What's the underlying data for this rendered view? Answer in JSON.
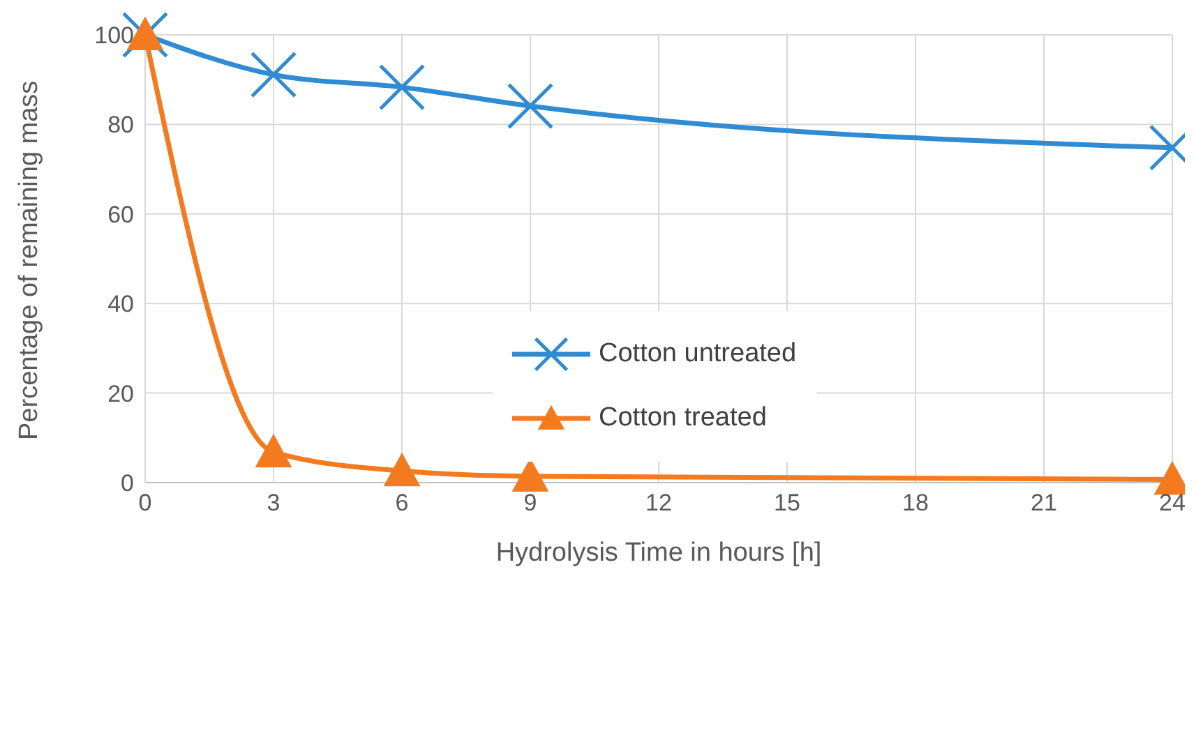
{
  "chart_data": {
    "type": "line",
    "xlabel": "Hydrolysis Time in hours [h]",
    "ylabel": "Percentage of remaining mass",
    "x": [
      0,
      3,
      6,
      9,
      24
    ],
    "series": [
      {
        "name": "Cotton untreated",
        "color": "#2e8bd4",
        "marker": "cross",
        "values": [
          100,
          91.1,
          88.3,
          84.1,
          74.8
        ]
      },
      {
        "name": "Cotton treated",
        "color": "#f47a20",
        "marker": "triangle",
        "values": [
          100,
          6.8,
          2.6,
          1.4,
          0.7
        ]
      }
    ],
    "xlim": [
      0,
      24
    ],
    "xticks": [
      0,
      3,
      6,
      9,
      12,
      15,
      18,
      21,
      24
    ],
    "ylim": [
      0,
      100
    ],
    "yticks": [
      0,
      20,
      40,
      60,
      80,
      100
    ],
    "grid": true,
    "legend": "center",
    "line_style": "solid"
  }
}
